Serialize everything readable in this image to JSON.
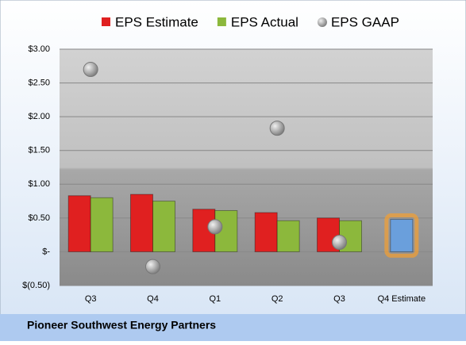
{
  "chart_data": {
    "type": "bar",
    "title": "Pioneer Southwest Energy Partners",
    "categories": [
      "Q3",
      "Q4",
      "Q1",
      "Q2",
      "Q3",
      "Q4 Estimate"
    ],
    "series": [
      {
        "name": "EPS Estimate",
        "color": "#e02020",
        "values": [
          0.83,
          0.85,
          0.63,
          0.58,
          0.5,
          0.48
        ]
      },
      {
        "name": "EPS Actual",
        "color": "#8cb83c",
        "values": [
          0.8,
          0.75,
          0.61,
          0.46,
          0.46,
          null
        ]
      },
      {
        "name": "EPS GAAP",
        "color": "#a8a8a8",
        "type": "scatter",
        "values": [
          2.7,
          -0.22,
          0.37,
          1.83,
          0.14,
          null
        ]
      }
    ],
    "highlight": {
      "index": 5,
      "color": "#6a9fdc"
    },
    "ylim": [
      -0.5,
      3
    ],
    "yticks": [
      {
        "value": -0.5,
        "label": "$(0.50)"
      },
      {
        "value": 0,
        "label": "$-"
      },
      {
        "value": 0.5,
        "label": "$0.50"
      },
      {
        "value": 1,
        "label": "$1.00"
      },
      {
        "value": 1.5,
        "label": "$1.50"
      },
      {
        "value": 2,
        "label": "$2.00"
      },
      {
        "value": 2.5,
        "label": "$2.50"
      },
      {
        "value": 3,
        "label": "$3.00"
      }
    ],
    "grid": true
  }
}
